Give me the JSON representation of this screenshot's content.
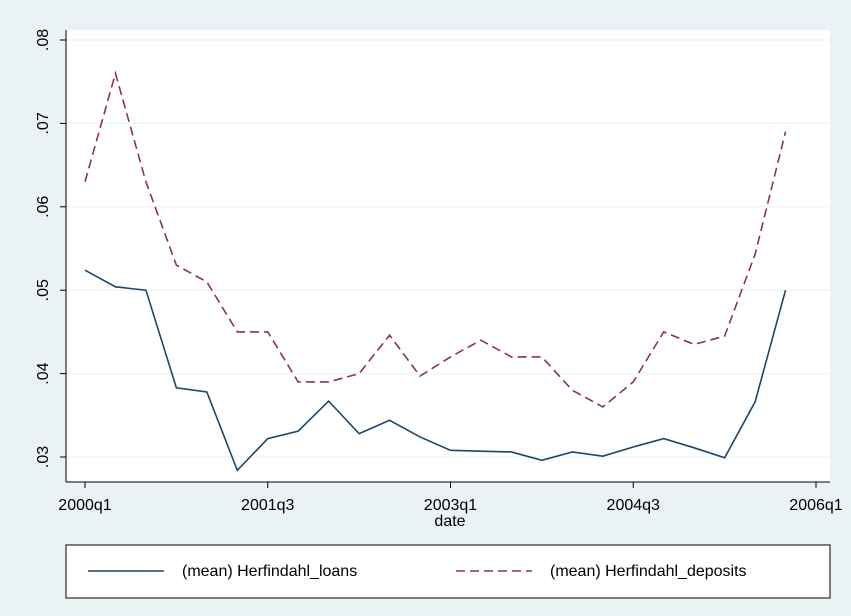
{
  "chart_data": {
    "type": "line",
    "x_label": "date",
    "x": [
      "2000q1",
      "2000q2",
      "2000q3",
      "2000q4",
      "2001q1",
      "2001q2",
      "2001q3",
      "2001q4",
      "2002q1",
      "2002q2",
      "2002q3",
      "2002q4",
      "2003q1",
      "2003q2",
      "2003q3",
      "2003q4",
      "2004q1",
      "2004q2",
      "2004q3",
      "2004q4",
      "2005q1",
      "2005q2",
      "2005q3",
      "2005q4"
    ],
    "series": [
      {
        "name": "(mean) Herfindahl_loans",
        "color": "#1a476f",
        "dash": "solid",
        "values": [
          0.0524,
          0.0504,
          0.05,
          0.0383,
          0.0378,
          0.0284,
          0.0322,
          0.0331,
          0.0367,
          0.0328,
          0.0344,
          0.0324,
          0.0308,
          0.0307,
          0.0306,
          0.0296,
          0.0306,
          0.0301,
          0.0312,
          0.0322,
          0.0311,
          0.0299,
          0.0366,
          0.05
        ]
      },
      {
        "name": "(mean) Herfindahl_deposits",
        "color": "#90353b",
        "dash": "dashed",
        "values": [
          0.063,
          0.076,
          0.063,
          0.053,
          0.051,
          0.045,
          0.045,
          0.039,
          0.039,
          0.04,
          0.0446,
          0.0397,
          0.042,
          0.044,
          0.042,
          0.042,
          0.038,
          0.036,
          0.039,
          0.045,
          0.0435,
          0.0445,
          0.0543,
          0.069
        ]
      }
    ],
    "xticks": [
      "2000q1",
      "2001q3",
      "2003q1",
      "2004q3",
      "2006q1"
    ],
    "ylim": [
      0.027,
      0.0812
    ],
    "yticks": [
      {
        "value": 0.03,
        "label": ".03"
      },
      {
        "value": 0.04,
        "label": ".04"
      },
      {
        "value": 0.05,
        "label": ".05"
      },
      {
        "value": 0.06,
        "label": ".06"
      },
      {
        "value": 0.07,
        "label": ".07"
      },
      {
        "value": 0.08,
        "label": ".08"
      }
    ],
    "grid": true
  }
}
